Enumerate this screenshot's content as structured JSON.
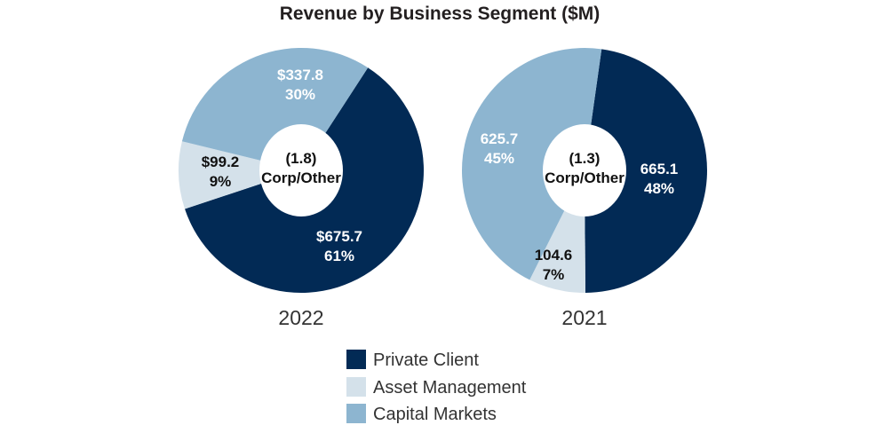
{
  "chart_data": {
    "type": "pie",
    "style": "donut",
    "title": "Revenue by Business Segment ($M)",
    "legend": {
      "placement": "bottom",
      "entries": [
        "Private Client",
        "Asset Management",
        "Capital Markets"
      ]
    },
    "colors": {
      "Private Client": "#022a55",
      "Asset Management": "#d4e1ea",
      "Capital Markets": "#8db5d0"
    },
    "charts": [
      {
        "year": "2022",
        "center_value": "(1.8)",
        "center_label": "Corp/Other",
        "slices": [
          {
            "name": "Private Client",
            "value": 675.7,
            "value_label": "$675.7",
            "percent_label": "61%"
          },
          {
            "name": "Asset Management",
            "value": 99.2,
            "value_label": "$99.2",
            "percent_label": "9%"
          },
          {
            "name": "Capital Markets",
            "value": 337.8,
            "value_label": "$337.8",
            "percent_label": "30%"
          }
        ]
      },
      {
        "year": "2021",
        "center_value": "(1.3)",
        "center_label": "Corp/Other",
        "slices": [
          {
            "name": "Private Client",
            "value": 665.1,
            "value_label": "665.1",
            "percent_label": "48%"
          },
          {
            "name": "Asset Management",
            "value": 104.6,
            "value_label": "104.6",
            "percent_label": "7%"
          },
          {
            "name": "Capital Markets",
            "value": 625.7,
            "value_label": "625.7",
            "percent_label": "45%"
          }
        ]
      }
    ]
  }
}
